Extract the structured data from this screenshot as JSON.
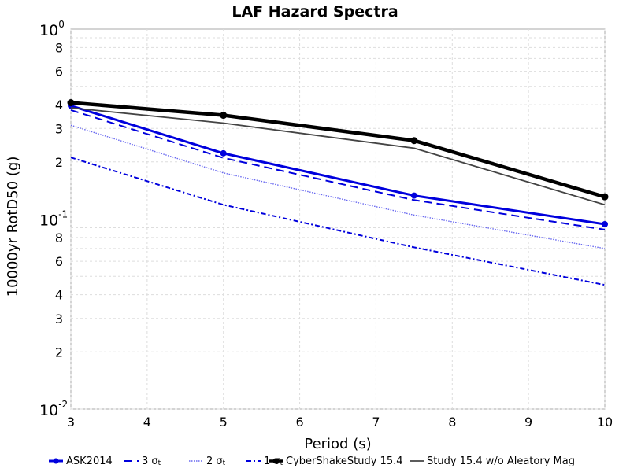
{
  "chart_data": {
    "type": "line",
    "title": "LAF Hazard Spectra",
    "xlabel": "Period (s)",
    "ylabel": "10000yr RotD50 (g)",
    "xlim": [
      3,
      10
    ],
    "ylim": [
      0.01,
      1
    ],
    "yscale": "log",
    "grid": true,
    "legend_position": "bottom",
    "x_ticks": [
      "3",
      "4",
      "5",
      "6",
      "7",
      "8",
      "9",
      "10"
    ],
    "y_major_ticks": [
      {
        "value": 0.01,
        "base": "10",
        "exp": "-2"
      },
      {
        "value": 0.1,
        "base": "10",
        "exp": "-1"
      },
      {
        "value": 1,
        "base": "10",
        "exp": "0"
      }
    ],
    "y_minor_ticks": [
      {
        "value": 0.02,
        "label": "2"
      },
      {
        "value": 0.03,
        "label": "3"
      },
      {
        "value": 0.04,
        "label": "4"
      },
      {
        "value": 0.06,
        "label": "6"
      },
      {
        "value": 0.08,
        "label": "8"
      },
      {
        "value": 0.2,
        "label": "2"
      },
      {
        "value": 0.3,
        "label": "3"
      },
      {
        "value": 0.4,
        "label": "4"
      },
      {
        "value": 0.6,
        "label": "6"
      },
      {
        "value": 0.8,
        "label": "8"
      }
    ],
    "series": [
      {
        "name": "ASK2014",
        "legend_main": "ASK2014",
        "legend_sub": "",
        "color": "#0000dd",
        "dash": "solid",
        "markers": true,
        "marker_shape": "circle",
        "x": [
          3,
          5,
          7.5,
          10
        ],
        "y": [
          0.395,
          0.222,
          0.133,
          0.094
        ]
      },
      {
        "name": "3 σt",
        "legend_main": "3 σ",
        "legend_sub": "t",
        "color": "#0000dd",
        "dash": "dashed",
        "markers": false,
        "x": [
          3,
          5,
          7.5,
          10
        ],
        "y": [
          0.375,
          0.21,
          0.126,
          0.088
        ]
      },
      {
        "name": "2 σt",
        "legend_main": "2 σ",
        "legend_sub": "t",
        "color": "#6a6af0",
        "dash": "dotted",
        "markers": false,
        "x": [
          3,
          5,
          7.5,
          10
        ],
        "y": [
          0.312,
          0.175,
          0.105,
          0.07
        ]
      },
      {
        "name": "1 σt",
        "legend_main": "1 σ",
        "legend_sub": "t",
        "color": "#0000dd",
        "dash": "dashdot",
        "markers": false,
        "x": [
          3,
          5,
          7.5,
          10
        ],
        "y": [
          0.211,
          0.119,
          0.071,
          0.045
        ]
      },
      {
        "name": "CyberShakeStudy 15.4",
        "legend_main": "CyberShakeStudy 15.4",
        "legend_sub": "",
        "color": "#000000",
        "dash": "solid-thick",
        "markers": true,
        "marker_shape": "circle",
        "x": [
          3,
          5,
          7.5,
          10
        ],
        "y": [
          0.41,
          0.352,
          0.259,
          0.131
        ]
      },
      {
        "name": "Study 15.4 w/o Aleatory Mag",
        "legend_main": "Study 15.4 w/o Aleatory Mag",
        "legend_sub": "",
        "color": "#444444",
        "dash": "solid-thin",
        "markers": false,
        "x": [
          3,
          5,
          7.5,
          10
        ],
        "y": [
          0.385,
          0.32,
          0.236,
          0.119
        ]
      }
    ]
  }
}
